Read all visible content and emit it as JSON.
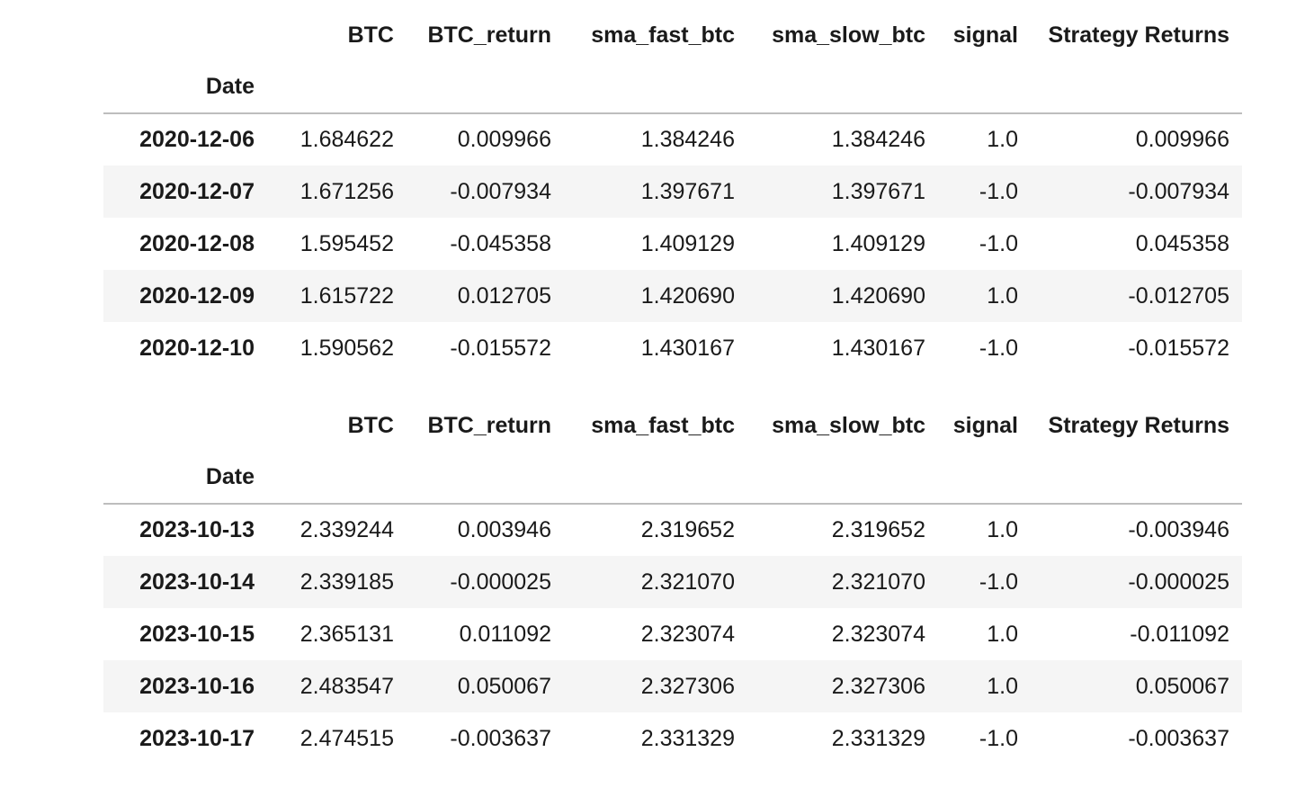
{
  "columns": [
    "BTC",
    "BTC_return",
    "sma_fast_btc",
    "sma_slow_btc",
    "signal",
    "Strategy Returns"
  ],
  "index_name": "Date",
  "tables": [
    {
      "rows": [
        {
          "date": "2020-12-06",
          "values": [
            "1.684622",
            "0.009966",
            "1.384246",
            "1.384246",
            "1.0",
            "0.009966"
          ]
        },
        {
          "date": "2020-12-07",
          "values": [
            "1.671256",
            "-0.007934",
            "1.397671",
            "1.397671",
            "-1.0",
            "-0.007934"
          ]
        },
        {
          "date": "2020-12-08",
          "values": [
            "1.595452",
            "-0.045358",
            "1.409129",
            "1.409129",
            "-1.0",
            "0.045358"
          ]
        },
        {
          "date": "2020-12-09",
          "values": [
            "1.615722",
            "0.012705",
            "1.420690",
            "1.420690",
            "1.0",
            "-0.012705"
          ]
        },
        {
          "date": "2020-12-10",
          "values": [
            "1.590562",
            "-0.015572",
            "1.430167",
            "1.430167",
            "-1.0",
            "-0.015572"
          ]
        }
      ]
    },
    {
      "rows": [
        {
          "date": "2023-10-13",
          "values": [
            "2.339244",
            "0.003946",
            "2.319652",
            "2.319652",
            "1.0",
            "-0.003946"
          ]
        },
        {
          "date": "2023-10-14",
          "values": [
            "2.339185",
            "-0.000025",
            "2.321070",
            "2.321070",
            "-1.0",
            "-0.000025"
          ]
        },
        {
          "date": "2023-10-15",
          "values": [
            "2.365131",
            "0.011092",
            "2.323074",
            "2.323074",
            "1.0",
            "-0.011092"
          ]
        },
        {
          "date": "2023-10-16",
          "values": [
            "2.483547",
            "0.050067",
            "2.327306",
            "2.327306",
            "1.0",
            "0.050067"
          ]
        },
        {
          "date": "2023-10-17",
          "values": [
            "2.474515",
            "-0.003637",
            "2.331329",
            "2.331329",
            "-1.0",
            "-0.003637"
          ]
        }
      ]
    }
  ]
}
